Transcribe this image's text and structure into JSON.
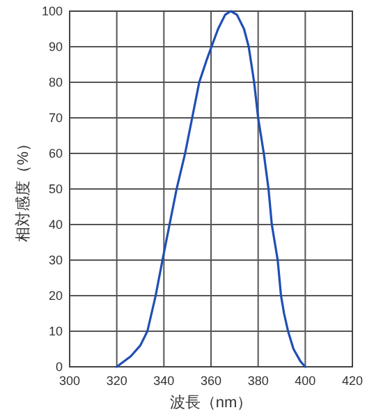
{
  "chart_data": {
    "type": "line",
    "xlabel": "波長（nm）",
    "ylabel": "相対感度（%）",
    "x": [
      320,
      326,
      330,
      333,
      336.5,
      339.4,
      342.4,
      345.4,
      349,
      352,
      355,
      358,
      360.2,
      363,
      366,
      368.4,
      371,
      374,
      376,
      378.3,
      380,
      382.4,
      384.4,
      385.8,
      388.3,
      389.7,
      391,
      392.7,
      395,
      398,
      400
    ],
    "values": [
      0,
      3,
      6,
      10,
      20,
      30,
      40,
      50,
      60,
      70,
      80,
      86,
      90,
      95,
      99,
      100,
      99,
      95,
      90,
      80,
      70,
      60,
      50,
      40,
      30,
      20,
      15,
      10,
      5,
      1.5,
      0
    ],
    "color": "#1f4fb4",
    "xlim": [
      300,
      420
    ],
    "ylim": [
      0,
      100
    ],
    "xticks": [
      300,
      320,
      340,
      360,
      380,
      400,
      420
    ],
    "yticks": [
      0,
      10,
      20,
      30,
      40,
      50,
      60,
      70,
      80,
      90,
      100
    ],
    "grid": true
  }
}
